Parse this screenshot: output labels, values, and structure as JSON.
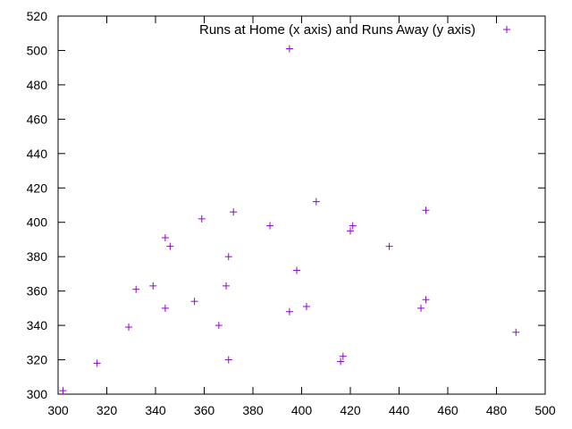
{
  "colors": {
    "series": "#9400d3",
    "axis": "#000000",
    "background": "#ffffff"
  },
  "chart_data": {
    "type": "scatter",
    "title": "",
    "xlabel": "",
    "ylabel": "",
    "xlim": [
      300,
      500
    ],
    "ylim": [
      300,
      520
    ],
    "x_ticks": [
      "300",
      "320",
      "340",
      "360",
      "380",
      "400",
      "420",
      "440",
      "460",
      "480",
      "500"
    ],
    "y_ticks": [
      "300",
      "320",
      "340",
      "360",
      "380",
      "400",
      "420",
      "440",
      "460",
      "480",
      "500",
      "520"
    ],
    "grid": false,
    "legend_position": "top-right",
    "series": [
      {
        "name": "Runs at Home (x axis) and Runs Away (y axis)",
        "marker": "plus",
        "x": [
          302,
          316,
          329,
          332,
          339,
          344,
          344,
          346,
          356,
          359,
          366,
          369,
          370,
          370,
          372,
          387,
          395,
          395,
          398,
          402,
          406,
          416,
          417,
          420,
          421,
          436,
          449,
          451,
          451,
          488
        ],
        "y": [
          302,
          318,
          339,
          361,
          363,
          350,
          391,
          386,
          354,
          402,
          340,
          363,
          320,
          380,
          406,
          398,
          348,
          501,
          372,
          351,
          412,
          319,
          322,
          395,
          398,
          386,
          350,
          355,
          407,
          336
        ]
      }
    ]
  }
}
